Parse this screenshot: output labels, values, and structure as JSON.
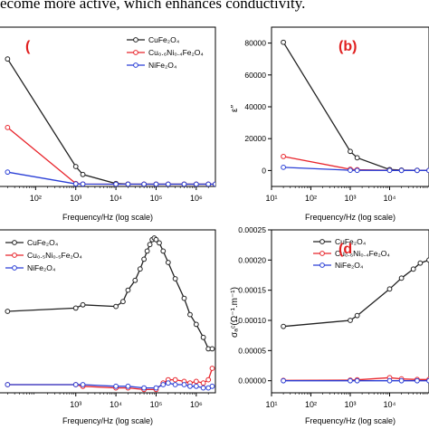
{
  "caption": "ecome more active, which enhances conductivity.",
  "colors": {
    "black": "#222222",
    "red": "#e8242b",
    "blue": "#2a3fd6",
    "panel_label": "#e02020"
  },
  "chart_data": [
    {
      "id": "a",
      "type": "line",
      "panel_label": "(",
      "log_x": true,
      "xlabel": "Frequency/Hz (log scale)",
      "ylabel": "",
      "xlim": [
        10,
        3000000
      ],
      "ylim": [
        0,
        100
      ],
      "xticks": [
        {
          "v": 100,
          "label": "10²"
        },
        {
          "v": 1000,
          "label": "10³"
        },
        {
          "v": 10000,
          "label": "10⁴"
        },
        {
          "v": 100000,
          "label": "10⁵"
        },
        {
          "v": 1000000,
          "label": "10⁶"
        }
      ],
      "yticks": [],
      "legend": {
        "position": "top-right",
        "entries": [
          "CuFe₂O₄",
          "Cu₀.₆Ni₀.₄Fe₂O₄",
          "NiFe₂O₄"
        ]
      },
      "series": [
        {
          "name": "CuFe₂O₄",
          "color": "black",
          "x": [
            20,
            1000,
            1500,
            10000,
            20000,
            50000,
            100000,
            200000,
            500000,
            1000000,
            2000000,
            3000000
          ],
          "y": [
            80,
            12.5,
            7.5,
            1.8,
            1.5,
            1.4,
            1.4,
            1.4,
            1.4,
            1.4,
            1.4,
            1.4
          ]
        },
        {
          "name": "Cu₀.₆Ni₀.₄Fe₂O₄",
          "color": "red",
          "x": [
            20,
            1000,
            1500,
            10000,
            20000,
            50000,
            100000,
            200000,
            500000,
            1000000,
            2000000,
            3000000
          ],
          "y": [
            37,
            1.8,
            1.5,
            1.4,
            1.4,
            1.4,
            1.4,
            1.4,
            1.4,
            1.4,
            1.4,
            1.4
          ]
        },
        {
          "name": "NiFe₂O₄",
          "color": "blue",
          "x": [
            20,
            1000,
            1500,
            10000,
            20000,
            50000,
            100000,
            200000,
            500000,
            1000000,
            2000000,
            3000000
          ],
          "y": [
            9,
            1.6,
            1.5,
            1.4,
            1.4,
            1.4,
            1.4,
            1.4,
            1.4,
            1.4,
            1.4,
            1.4
          ]
        }
      ]
    },
    {
      "id": "b",
      "type": "line",
      "panel_label": "(b)",
      "log_x": true,
      "xlabel": "Frequency/Hz (log scale)",
      "ylabel": "ε″",
      "xlim": [
        10,
        100000
      ],
      "ylim": [
        -10000,
        90000
      ],
      "xticks": [
        {
          "v": 10,
          "label": "10¹"
        },
        {
          "v": 100,
          "label": "10²"
        },
        {
          "v": 1000,
          "label": "10³"
        },
        {
          "v": 10000,
          "label": "10⁴"
        }
      ],
      "yticks": [
        {
          "v": 0,
          "label": "0"
        },
        {
          "v": 20000,
          "label": "20000"
        },
        {
          "v": 40000,
          "label": "40000"
        },
        {
          "v": 60000,
          "label": "60000"
        },
        {
          "v": 80000,
          "label": "80000"
        }
      ],
      "legend": null,
      "series": [
        {
          "name": "CuFe₂O₄",
          "color": "black",
          "x": [
            20,
            1000,
            1500,
            10000,
            20000,
            50000,
            100000
          ],
          "y": [
            80500,
            12000,
            8000,
            600,
            300,
            150,
            100
          ]
        },
        {
          "name": "Cu₀.₆Ni₀.₄Fe₂O₄",
          "color": "red",
          "x": [
            20,
            1000,
            1500,
            10000,
            20000,
            50000,
            100000
          ],
          "y": [
            8800,
            800,
            500,
            150,
            100,
            80,
            60
          ]
        },
        {
          "name": "NiFe₂O₄",
          "color": "blue",
          "x": [
            20,
            1000,
            1500,
            10000,
            20000,
            50000,
            100000
          ],
          "y": [
            2000,
            150,
            100,
            80,
            60,
            50,
            40
          ]
        }
      ]
    },
    {
      "id": "c",
      "type": "line",
      "panel_label": "",
      "log_x": true,
      "xlabel": "Frequency/Hz (log scale)",
      "ylabel": "",
      "xlim": [
        10,
        3000000
      ],
      "ylim": [
        0,
        100
      ],
      "xticks": [
        {
          "v": 1000,
          "label": "10³"
        },
        {
          "v": 10000,
          "label": "10⁴"
        },
        {
          "v": 100000,
          "label": "10⁵"
        },
        {
          "v": 1000000,
          "label": "10⁶"
        }
      ],
      "yticks": [],
      "legend": {
        "position": "top-left",
        "entries": [
          "CuFe₂O₄",
          "Cu₀.₅Ni₀.₅Fe₂O₄",
          "NiFe₂O₄"
        ]
      },
      "series": [
        {
          "name": "CuFe₂O₄",
          "color": "black",
          "x": [
            20,
            1000,
            1500,
            10000,
            15000,
            20000,
            30000,
            40000,
            50000,
            60000,
            70000,
            80000,
            90000,
            100000,
            120000,
            150000,
            200000,
            300000,
            500000,
            700000,
            1000000,
            1500000,
            2000000,
            2500000
          ],
          "y": [
            50,
            52,
            54,
            53,
            56,
            63,
            69,
            76,
            82,
            87,
            91,
            94,
            95,
            94,
            92,
            87,
            80,
            70,
            58,
            48,
            42,
            34,
            27,
            27
          ]
        },
        {
          "name": "Cu₀.₅Ni₀.₅Fe₂O₄",
          "color": "red",
          "x": [
            20,
            1000,
            1500,
            10000,
            20000,
            50000,
            100000,
            150000,
            200000,
            300000,
            500000,
            700000,
            1000000,
            1500000,
            2000000,
            2500000
          ],
          "y": [
            5,
            5,
            4,
            3,
            3,
            2,
            2,
            6,
            8,
            8,
            7,
            6,
            7,
            6,
            8,
            15
          ]
        },
        {
          "name": "NiFe₂O₄",
          "color": "blue",
          "x": [
            20,
            1000,
            1500,
            10000,
            20000,
            50000,
            100000,
            150000,
            200000,
            300000,
            500000,
            700000,
            1000000,
            1500000,
            2000000,
            2500000
          ],
          "y": [
            5,
            5,
            5,
            4,
            4,
            3,
            3,
            5,
            6,
            5,
            5,
            4,
            4,
            3,
            3,
            4
          ]
        }
      ]
    },
    {
      "id": "d",
      "type": "line",
      "panel_label": "(d",
      "log_x": true,
      "xlabel": "Frequency/Hz (log scale)",
      "ylabel": "σₐᶜ(Ω⁻¹.m⁻¹)",
      "xlim": [
        10,
        100000
      ],
      "ylim": [
        -2e-05,
        0.00025
      ],
      "xticks": [
        {
          "v": 10,
          "label": "10¹"
        },
        {
          "v": 100,
          "label": "10²"
        },
        {
          "v": 1000,
          "label": "10³"
        },
        {
          "v": 10000,
          "label": "10⁴"
        }
      ],
      "yticks": [
        {
          "v": 0,
          "label": "0.00000"
        },
        {
          "v": 5e-05,
          "label": "0.00005"
        },
        {
          "v": 0.0001,
          "label": "0.00010"
        },
        {
          "v": 0.00015,
          "label": "0.00015"
        },
        {
          "v": 0.0002,
          "label": "0.00020"
        },
        {
          "v": 0.00025,
          "label": "0.00025"
        }
      ],
      "legend": {
        "position": "top-right",
        "entries": [
          "CuFe₂O₄",
          "Cu₀.₆Ni₀.₄Fe₂O₄",
          "NiFe₂O₄"
        ]
      },
      "series": [
        {
          "name": "CuFe₂O₄",
          "color": "black",
          "x": [
            20,
            1000,
            1500,
            10000,
            20000,
            40000,
            60000,
            100000
          ],
          "y": [
            9e-05,
            0.0001,
            0.000108,
            0.000152,
            0.00017,
            0.000185,
            0.000195,
            0.0002
          ]
        },
        {
          "name": "Cu₀.₆Ni₀.₄Fe₂O₄",
          "color": "red",
          "x": [
            20,
            1000,
            1500,
            10000,
            20000,
            50000,
            100000
          ],
          "y": [
            5e-07,
            1e-06,
            1.5e-06,
            5e-06,
            3e-06,
            2e-06,
            2e-06
          ]
        },
        {
          "name": "NiFe₂O₄",
          "color": "blue",
          "x": [
            20,
            1000,
            1500,
            10000,
            20000,
            50000,
            100000
          ],
          "y": [
            0,
            0,
            0,
            0,
            0,
            0,
            0
          ]
        }
      ]
    }
  ]
}
